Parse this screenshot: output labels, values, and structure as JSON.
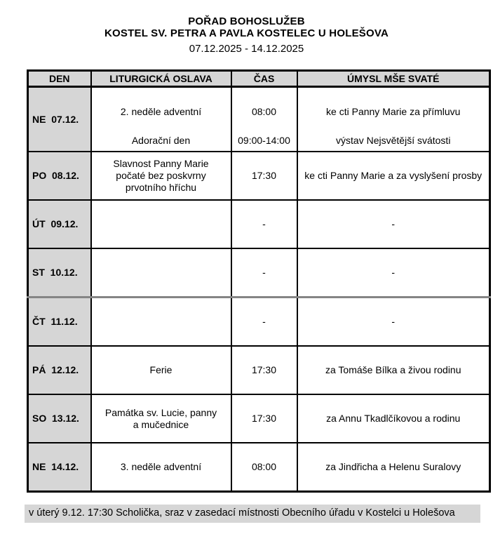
{
  "header": {
    "title": "POŘAD BOHOSLUŽEB",
    "subtitle": "KOSTEL SV. PETRA A PAVLA KOSTELEC U HOLEŠOVA",
    "date_range": "07.12.2025 - 14.12.2025"
  },
  "table": {
    "headers": [
      "DEN",
      "LITURGICKÁ OSLAVA",
      "ČAS",
      "ÚMYSL MŠE SVATÉ"
    ],
    "rows": [
      {
        "den": "NE  07.12.",
        "entries": [
          {
            "oslava": "2. neděle adventní",
            "cas": "08:00",
            "umysl": "ke cti Panny Marie za přímluvu"
          },
          {
            "oslava": "Adorační den",
            "cas": "09:00-14:00",
            "umysl": "výstav Nejsvětější svátosti"
          }
        ]
      },
      {
        "den": "PO  08.12.",
        "oslava": "Slavnost Panny Marie počaté bez poskvrny prvotního hříchu",
        "cas": "17:30",
        "umysl": "ke cti Panny Marie a za vyslyšení prosby"
      },
      {
        "den": "ÚT  09.12.",
        "oslava": "",
        "cas": "-",
        "umysl": "-"
      },
      {
        "den": "ST  10.12.",
        "oslava": "",
        "cas": "-",
        "umysl": "-"
      },
      {
        "den": "ČT  11.12.",
        "oslava": "",
        "cas": "-",
        "umysl": "-"
      },
      {
        "den": "PÁ  12.12.",
        "oslava": "Ferie",
        "cas": "17:30",
        "umysl": "za Tomáše Bílka a živou rodinu"
      },
      {
        "den": "SO  13.12.",
        "oslava": "Památka sv. Lucie, panny a mučednice",
        "cas": "17:30",
        "umysl": "za Annu Tkadlčíkovou a rodinu"
      },
      {
        "den": "NE  14.12.",
        "oslava": "3. neděle adventní",
        "cas": "08:00",
        "umysl": "za Jindřicha a Helenu Suralovy"
      }
    ]
  },
  "footer": {
    "note": "v úterý 9.12. 17:30 Scholička, sraz v zasedací místnosti Obecního úřadu v Kostelci u Holešova"
  },
  "colors": {
    "cell_gray": "#d6d6d6",
    "border_black": "#000000",
    "page_break_divider_gray": "#858585"
  }
}
